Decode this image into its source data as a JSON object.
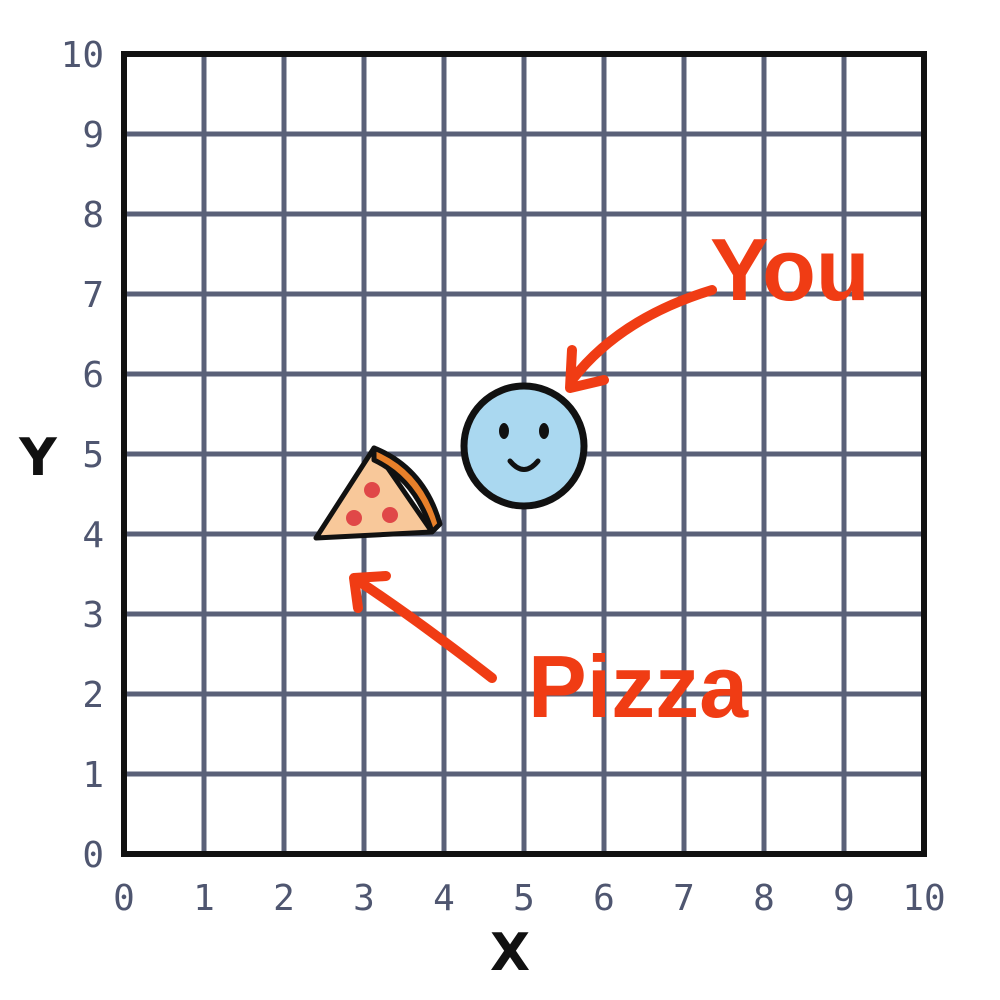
{
  "axes": {
    "x_label": "X",
    "y_label": "Y",
    "x_range": [
      0,
      10
    ],
    "y_range": [
      0,
      10
    ],
    "x_ticks": [
      "0",
      "1",
      "2",
      "3",
      "4",
      "5",
      "6",
      "7",
      "8",
      "9",
      "10"
    ],
    "y_ticks": [
      "0",
      "1",
      "2",
      "3",
      "4",
      "5",
      "6",
      "7",
      "8",
      "9",
      "10"
    ],
    "grid": true
  },
  "markers": [
    {
      "id": "you",
      "icon": "smiley-face-icon",
      "x": 5,
      "y": 5.1,
      "label": "You"
    },
    {
      "id": "pizza",
      "icon": "pizza-slice-icon",
      "x": 3.2,
      "y": 4.2,
      "label": "Pizza"
    }
  ],
  "colors": {
    "grid": "#5a6178",
    "frame": "#111111",
    "callout": "#f03c14",
    "face_fill": "#aad8f0",
    "crust": "#e8802a",
    "pizza_fill": "#f8c89a",
    "pepperoni": "#e04848"
  }
}
